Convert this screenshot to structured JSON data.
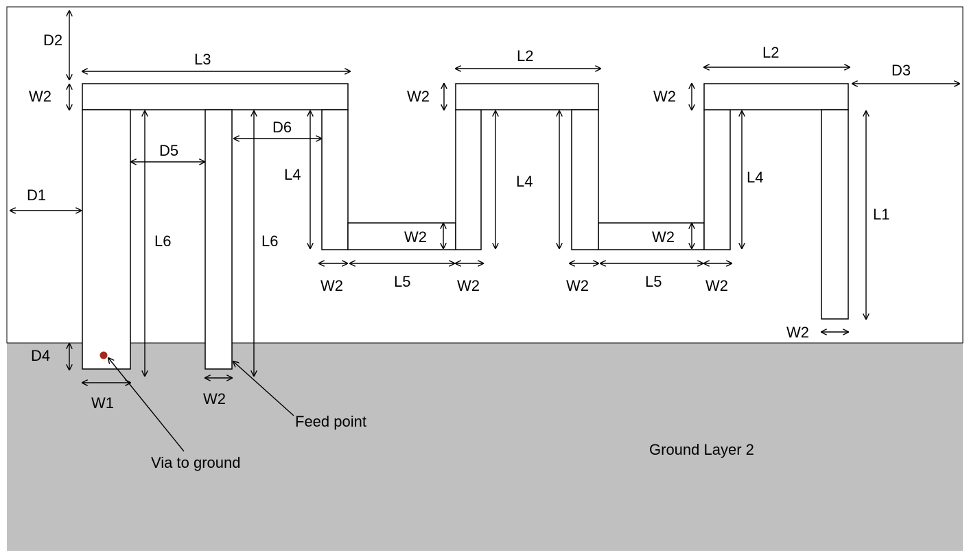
{
  "labels": {
    "D1": "D1",
    "D2": "D2",
    "D3": "D3",
    "D4": "D4",
    "D5": "D5",
    "D6": "D6",
    "L1": "L1",
    "L2": "L2",
    "L3": "L3",
    "L4": "L4",
    "L5": "L5",
    "L6": "L6",
    "W1": "W1",
    "W2": "W2"
  },
  "annotations": {
    "feed_point": "Feed point",
    "via_to_ground": "Via to ground",
    "ground_layer": "Ground Layer 2"
  },
  "colors": {
    "substrate": "#ffffff",
    "ground": "#c0c0c0",
    "via": "#a52a1e",
    "outline": "#000000"
  }
}
